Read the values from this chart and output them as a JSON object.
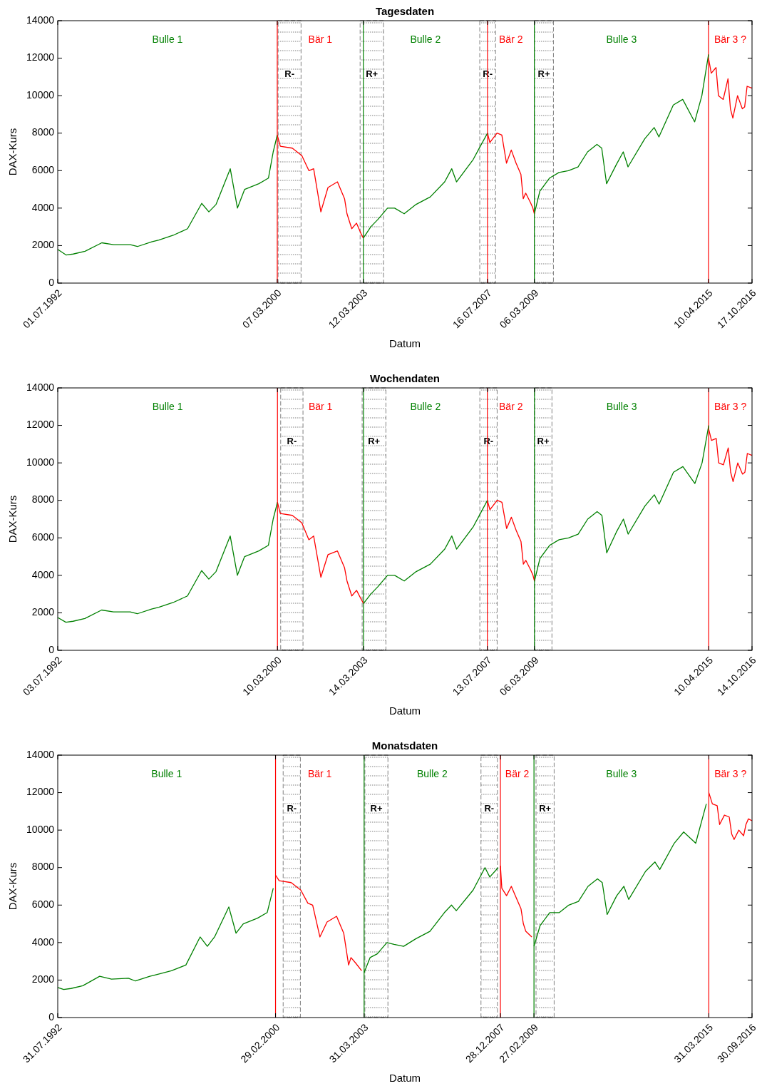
{
  "chart_data": [
    {
      "type": "line",
      "title": "Tagesdaten",
      "xlabel": "Datum",
      "ylabel": "DAX-Kurs",
      "xlim": [
        "1992-07-01",
        "2016-10-17"
      ],
      "ylim": [
        0,
        14000
      ],
      "yticks": [
        0,
        2000,
        4000,
        6000,
        8000,
        10000,
        12000,
        14000
      ],
      "xticks": [
        {
          "value": "1992-07-01",
          "label": "01.07.1992"
        },
        {
          "value": "2000-03-07",
          "label": "07.03.2000"
        },
        {
          "value": "2003-03-12",
          "label": "12.03.2003"
        },
        {
          "value": "2007-07-16",
          "label": "16.07.2007"
        },
        {
          "value": "2009-03-06",
          "label": "06.03.2009"
        },
        {
          "value": "2015-04-10",
          "label": "10.04.2015"
        },
        {
          "value": "2016-10-17",
          "label": "17.10.2016"
        }
      ],
      "series": [
        {
          "color": "#008000",
          "x": [
            "1992-07-01",
            "1992-10",
            "1993-01",
            "1993-06",
            "1994-01",
            "1994-06",
            "1995-01",
            "1995-04",
            "1995-10",
            "1996-01",
            "1996-07",
            "1997-01",
            "1997-07",
            "1997-10",
            "1998-01",
            "1998-07",
            "1998-10",
            "1999-01",
            "1999-07",
            "1999-11",
            "2000-01",
            "2000-03-07"
          ],
          "values": [
            1800,
            1500,
            1550,
            1700,
            2150,
            2050,
            2050,
            1950,
            2200,
            2300,
            2550,
            2900,
            4250,
            3800,
            4200,
            6100,
            4000,
            5000,
            5300,
            5600,
            7000,
            7900
          ]
        },
        {
          "color": "#ff0000",
          "x": [
            "2000-03-07",
            "2000-04",
            "2000-09",
            "2001-01",
            "2001-04",
            "2001-06",
            "2001-09",
            "2001-12",
            "2002-04",
            "2002-07",
            "2002-08",
            "2002-10",
            "2002-12",
            "2003-02",
            "2003-03-12"
          ],
          "values": [
            7900,
            7300,
            7200,
            6800,
            6000,
            6100,
            3800,
            5100,
            5400,
            4500,
            3700,
            2900,
            3200,
            2600,
            2400
          ]
        },
        {
          "color": "#008000",
          "x": [
            "2003-03-12",
            "2003-06",
            "2003-09",
            "2004-01",
            "2004-04",
            "2004-08",
            "2005-01",
            "2005-07",
            "2006-01",
            "2006-04",
            "2006-06",
            "2007-01",
            "2007-04",
            "2007-07-16"
          ],
          "values": [
            2400,
            3000,
            3400,
            4000,
            4000,
            3700,
            4200,
            4600,
            5400,
            6100,
            5400,
            6600,
            7300,
            8000
          ]
        },
        {
          "color": "#ff0000",
          "x": [
            "2007-07-16",
            "2007-08",
            "2007-11",
            "2008-01",
            "2008-03",
            "2008-05",
            "2008-07",
            "2008-09",
            "2008-10",
            "2008-11",
            "2009-01",
            "2009-02",
            "2009-03-06"
          ],
          "values": [
            8000,
            7500,
            8000,
            7900,
            6400,
            7100,
            6400,
            5800,
            4500,
            4800,
            4300,
            4000,
            3700
          ]
        },
        {
          "color": "#008000",
          "x": [
            "2009-03-06",
            "2009-05",
            "2009-09",
            "2010-01",
            "2010-05",
            "2010-09",
            "2011-01",
            "2011-05",
            "2011-07",
            "2011-09",
            "2012-01",
            "2012-04",
            "2012-06",
            "2013-01",
            "2013-05",
            "2013-07",
            "2014-01",
            "2014-05",
            "2014-10",
            "2015-01",
            "2015-04-10"
          ],
          "values": [
            3700,
            4900,
            5600,
            5900,
            6000,
            6200,
            7000,
            7400,
            7200,
            5300,
            6300,
            7000,
            6200,
            7700,
            8300,
            7800,
            9500,
            9800,
            8600,
            10000,
            12200
          ]
        },
        {
          "color": "#ff0000",
          "x": [
            "2015-04-10",
            "2015-05",
            "2015-07",
            "2015-08",
            "2015-10",
            "2015-12",
            "2016-01",
            "2016-02",
            "2016-04",
            "2016-06",
            "2016-07",
            "2016-08",
            "2016-10-17"
          ],
          "values": [
            12000,
            11200,
            11500,
            10000,
            9800,
            10900,
            9300,
            8800,
            10000,
            9300,
            9400,
            10500,
            10400
          ]
        }
      ],
      "ref_lines": [
        {
          "axis": "x",
          "value": "2000-03-07",
          "color": "#ff0000"
        },
        {
          "axis": "x",
          "value": "2003-03-12",
          "color": "#008000"
        },
        {
          "axis": "x",
          "value": "2007-07-16",
          "color": "#ff0000"
        },
        {
          "axis": "x",
          "value": "2009-03-06",
          "color": "#008000"
        },
        {
          "axis": "x",
          "value": "2015-04-10",
          "color": "#ff0000"
        }
      ],
      "bands": [
        {
          "axis": "x",
          "from": "2000-03-17",
          "to": "2001-01-05",
          "label": "R-",
          "color": "#808080"
        },
        {
          "axis": "x",
          "from": "2003-01-30",
          "to": "2003-11-25",
          "label": "R+",
          "color": "#808080"
        },
        {
          "axis": "x",
          "from": "2007-04-08",
          "to": "2007-10-27",
          "label": "R-",
          "color": "#808080"
        },
        {
          "axis": "x",
          "from": "2009-03-06",
          "to": "2009-11-05",
          "label": "R+",
          "color": "#808080"
        }
      ],
      "annotations": [
        "Bulle 1",
        "Bär 1",
        "Bulle 2",
        "Bär 2",
        "Bulle 3",
        "Bär 3 ?"
      ]
    },
    {
      "type": "line",
      "title": "Wochendaten",
      "xlabel": "Datum",
      "ylabel": "DAX-Kurs",
      "xlim": [
        "1992-07-03",
        "2016-10-14"
      ],
      "ylim": [
        0,
        14000
      ],
      "yticks": [
        0,
        2000,
        4000,
        6000,
        8000,
        10000,
        12000,
        14000
      ],
      "xticks": [
        {
          "value": "1992-07-03",
          "label": "03.07.1992"
        },
        {
          "value": "2000-03-10",
          "label": "10.03.2000"
        },
        {
          "value": "2003-03-14",
          "label": "14.03.2003"
        },
        {
          "value": "2007-07-13",
          "label": "13.07.2007"
        },
        {
          "value": "2009-03-06",
          "label": "06.03.2009"
        },
        {
          "value": "2015-04-10",
          "label": "10.04.2015"
        },
        {
          "value": "2016-10-14",
          "label": "14.10.2016"
        }
      ],
      "series": [
        {
          "color": "#008000",
          "x": [
            "1992-07-03",
            "1992-10",
            "1993-01",
            "1993-06",
            "1994-01",
            "1994-06",
            "1995-01",
            "1995-04",
            "1995-10",
            "1996-01",
            "1996-07",
            "1997-01",
            "1997-07",
            "1997-10",
            "1998-01",
            "1998-07",
            "1998-10",
            "1999-01",
            "1999-07",
            "1999-11",
            "2000-01",
            "2000-03-10"
          ],
          "values": [
            1750,
            1500,
            1550,
            1700,
            2150,
            2050,
            2050,
            1950,
            2200,
            2300,
            2550,
            2900,
            4250,
            3800,
            4200,
            6100,
            4000,
            5000,
            5300,
            5600,
            7000,
            7900
          ]
        },
        {
          "color": "#ff0000",
          "x": [
            "2000-03-10",
            "2000-04",
            "2000-09",
            "2001-01",
            "2001-04",
            "2001-06",
            "2001-09",
            "2001-12",
            "2002-04",
            "2002-07",
            "2002-08",
            "2002-10",
            "2002-12",
            "2003-02",
            "2003-03-14"
          ],
          "values": [
            7900,
            7300,
            7200,
            6800,
            5900,
            6100,
            3900,
            5100,
            5300,
            4400,
            3700,
            2900,
            3200,
            2700,
            2500
          ]
        },
        {
          "color": "#008000",
          "x": [
            "2003-03-14",
            "2003-06",
            "2003-09",
            "2004-01",
            "2004-04",
            "2004-08",
            "2005-01",
            "2005-07",
            "2006-01",
            "2006-04",
            "2006-06",
            "2007-01",
            "2007-04",
            "2007-07-13"
          ],
          "values": [
            2500,
            3000,
            3400,
            4000,
            4000,
            3700,
            4200,
            4600,
            5400,
            6100,
            5400,
            6600,
            7300,
            8000
          ]
        },
        {
          "color": "#ff0000",
          "x": [
            "2007-07-13",
            "2007-08",
            "2007-11",
            "2008-01",
            "2008-03",
            "2008-05",
            "2008-07",
            "2008-09",
            "2008-10",
            "2008-11",
            "2009-01",
            "2009-02",
            "2009-03-06"
          ],
          "values": [
            8000,
            7500,
            8000,
            7900,
            6500,
            7100,
            6400,
            5800,
            4600,
            4800,
            4300,
            4000,
            3700
          ]
        },
        {
          "color": "#008000",
          "x": [
            "2009-03-06",
            "2009-05",
            "2009-09",
            "2010-01",
            "2010-05",
            "2010-09",
            "2011-01",
            "2011-05",
            "2011-07",
            "2011-09",
            "2012-01",
            "2012-04",
            "2012-06",
            "2013-01",
            "2013-05",
            "2013-07",
            "2014-01",
            "2014-05",
            "2014-10",
            "2015-01",
            "2015-04-10"
          ],
          "values": [
            3700,
            4900,
            5600,
            5900,
            6000,
            6200,
            7000,
            7400,
            7200,
            5200,
            6300,
            7000,
            6200,
            7700,
            8300,
            7800,
            9500,
            9800,
            8900,
            10000,
            12000
          ]
        },
        {
          "color": "#ff0000",
          "x": [
            "2015-04-10",
            "2015-05",
            "2015-07",
            "2015-08",
            "2015-10",
            "2015-12",
            "2016-01",
            "2016-02",
            "2016-04",
            "2016-06",
            "2016-07",
            "2016-08",
            "2016-10-14"
          ],
          "values": [
            11800,
            11200,
            11300,
            10000,
            9900,
            10800,
            9500,
            9000,
            10000,
            9400,
            9500,
            10500,
            10400
          ]
        }
      ],
      "ref_lines": [
        {
          "axis": "x",
          "value": "2000-03-10",
          "color": "#ff0000"
        },
        {
          "axis": "x",
          "value": "2003-03-14",
          "color": "#008000"
        },
        {
          "axis": "x",
          "value": "2007-07-13",
          "color": "#ff0000"
        },
        {
          "axis": "x",
          "value": "2009-03-06",
          "color": "#008000"
        },
        {
          "axis": "x",
          "value": "2015-04-10",
          "color": "#ff0000"
        }
      ],
      "bands": [
        {
          "axis": "x",
          "from": "2000-04-20",
          "to": "2001-01-30",
          "label": "R-",
          "color": "#808080"
        },
        {
          "axis": "x",
          "from": "2003-02-25",
          "to": "2003-12-25",
          "label": "R+",
          "color": "#808080"
        },
        {
          "axis": "x",
          "from": "2007-04-08",
          "to": "2007-11-15",
          "label": "R-",
          "color": "#808080"
        },
        {
          "axis": "x",
          "from": "2009-03-06",
          "to": "2009-10-15",
          "label": "R+",
          "color": "#808080"
        }
      ],
      "annotations": [
        "Bulle 1",
        "Bär 1",
        "Bulle 2",
        "Bär 2",
        "Bulle 3",
        "Bär 3 ?"
      ]
    },
    {
      "type": "line",
      "title": "Monatsdaten",
      "xlabel": "Datum",
      "ylabel": "DAX-Kurs",
      "xlim": [
        "1992-07-31",
        "2016-09-30"
      ],
      "ylim": [
        0,
        14000
      ],
      "yticks": [
        0,
        2000,
        4000,
        6000,
        8000,
        10000,
        12000,
        14000
      ],
      "xticks": [
        {
          "value": "1992-07-31",
          "label": "31.07.1992"
        },
        {
          "value": "2000-02-29",
          "label": "29.02.2000"
        },
        {
          "value": "2003-03-31",
          "label": "31.03.2003"
        },
        {
          "value": "2007-12-28",
          "label": "28.12.2007"
        },
        {
          "value": "2009-02-27",
          "label": "27.02.2009"
        },
        {
          "value": "2015-03-31",
          "label": "31.03.2015"
        },
        {
          "value": "2016-09-30",
          "label": "30.09.2016"
        }
      ],
      "series": [
        {
          "color": "#008000",
          "x": [
            "1992-07-31",
            "1992-10",
            "1993-01",
            "1993-06",
            "1994-01",
            "1994-06",
            "1995-01",
            "1995-04",
            "1995-10",
            "1996-01",
            "1996-07",
            "1997-01",
            "1997-07",
            "1997-10",
            "1998-01",
            "1998-07",
            "1998-10",
            "1999-01",
            "1999-07",
            "1999-11",
            "2000-01-31"
          ],
          "values": [
            1600,
            1500,
            1550,
            1700,
            2200,
            2050,
            2100,
            1950,
            2200,
            2300,
            2500,
            2800,
            4300,
            3800,
            4300,
            5900,
            4500,
            5000,
            5300,
            5600,
            6900
          ]
        },
        {
          "color": "#ff0000",
          "x": [
            "2000-02-29",
            "2000-04",
            "2000-09",
            "2001-01",
            "2001-04",
            "2001-06",
            "2001-09",
            "2001-12",
            "2002-04",
            "2002-07",
            "2002-09",
            "2002-10",
            "2002-12",
            "2003-02-28"
          ],
          "values": [
            7600,
            7300,
            7200,
            6800,
            6100,
            6000,
            4300,
            5100,
            5400,
            4500,
            2800,
            3200,
            2900,
            2500
          ]
        },
        {
          "color": "#008000",
          "x": [
            "2003-03-31",
            "2003-06",
            "2003-09",
            "2004-01",
            "2004-04",
            "2004-08",
            "2005-01",
            "2005-07",
            "2006-01",
            "2006-04",
            "2006-06",
            "2007-01",
            "2007-06",
            "2007-08",
            "2007-11-30"
          ],
          "values": [
            2400,
            3200,
            3400,
            4000,
            3900,
            3800,
            4200,
            4600,
            5600,
            6000,
            5700,
            6800,
            8000,
            7500,
            8000
          ]
        },
        {
          "color": "#ff0000",
          "x": [
            "2007-12-28",
            "2008-01",
            "2008-03",
            "2008-05",
            "2008-07",
            "2008-09",
            "2008-10",
            "2008-11",
            "2009-01-30"
          ],
          "values": [
            8100,
            6900,
            6500,
            7000,
            6400,
            5800,
            5000,
            4600,
            4300
          ]
        },
        {
          "color": "#008000",
          "x": [
            "2009-02-27",
            "2009-05",
            "2009-09",
            "2010-01",
            "2010-05",
            "2010-09",
            "2011-01",
            "2011-05",
            "2011-07",
            "2011-09",
            "2012-01",
            "2012-04",
            "2012-06",
            "2013-01",
            "2013-05",
            "2013-07",
            "2014-01",
            "2014-05",
            "2014-10",
            "2015-02-27"
          ],
          "values": [
            3800,
            4900,
            5600,
            5600,
            6000,
            6200,
            7000,
            7400,
            7200,
            5500,
            6500,
            7000,
            6300,
            7800,
            8300,
            7900,
            9300,
            9900,
            9300,
            11400
          ]
        },
        {
          "color": "#ff0000",
          "x": [
            "2015-03-31",
            "2015-05",
            "2015-07",
            "2015-08",
            "2015-10",
            "2015-12",
            "2016-01",
            "2016-02",
            "2016-04",
            "2016-06",
            "2016-07",
            "2016-08",
            "2016-09-30"
          ],
          "values": [
            12000,
            11400,
            11300,
            10300,
            10800,
            10700,
            9800,
            9500,
            10000,
            9700,
            10300,
            10600,
            10500
          ]
        }
      ],
      "ref_lines": [
        {
          "axis": "x",
          "value": "2000-02-29",
          "color": "#ff0000"
        },
        {
          "axis": "x",
          "value": "2003-03-31",
          "color": "#008000"
        },
        {
          "axis": "x",
          "value": "2007-12-28",
          "color": "#ff0000"
        },
        {
          "axis": "x",
          "value": "2009-02-27",
          "color": "#008000"
        },
        {
          "axis": "x",
          "value": "2015-03-31",
          "color": "#ff0000"
        }
      ],
      "bands": [
        {
          "axis": "x",
          "from": "2000-06-05",
          "to": "2001-01-10",
          "label": "R-",
          "color": "#808080"
        },
        {
          "axis": "x",
          "from": "2003-04-10",
          "to": "2004-01-28",
          "label": "R+",
          "color": "#808080"
        },
        {
          "axis": "x",
          "from": "2007-04-25",
          "to": "2007-11-20",
          "label": "R-",
          "color": "#808080"
        },
        {
          "axis": "x",
          "from": "2009-03-25",
          "to": "2009-11-10",
          "label": "R+",
          "color": "#808080"
        }
      ],
      "annotations": [
        "Bulle 1",
        "Bär 1",
        "Bulle 2",
        "Bär 2",
        "Bulle 3",
        "Bär 3 ?"
      ]
    }
  ]
}
